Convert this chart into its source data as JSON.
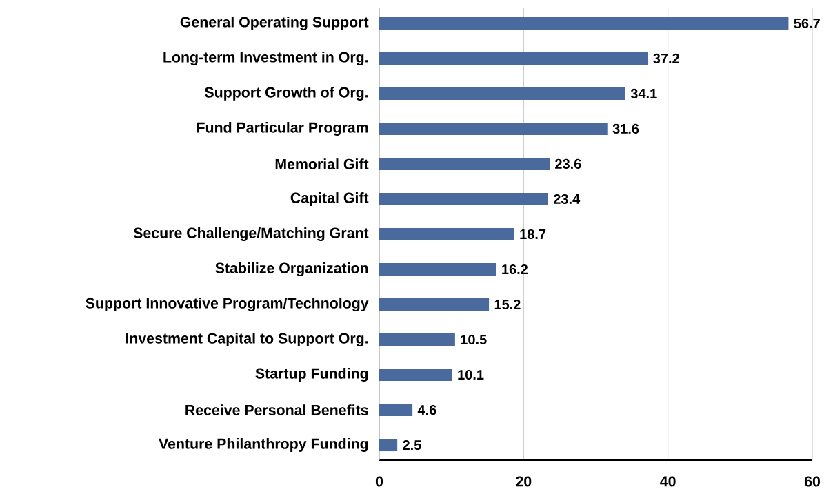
{
  "chart_data": {
    "type": "bar",
    "orientation": "horizontal",
    "categories": [
      "General Operating Support",
      "Long-term Investment in Org.",
      "Support Growth of Org.",
      "Fund Particular Program",
      "Memorial Gift",
      "Capital Gift",
      "Secure Challenge/Matching Grant",
      "Stabilize Organization",
      "Support Innovative Program/Technology",
      "Investment Capital to Support Org.",
      "Startup Funding",
      "Receive Personal Benefits",
      "Venture Philanthropy Funding"
    ],
    "values": [
      56.7,
      37.2,
      34.1,
      31.6,
      23.6,
      23.4,
      18.7,
      16.2,
      15.2,
      10.5,
      10.1,
      4.6,
      2.5
    ],
    "color": "#4a6a9e",
    "xlim": [
      0,
      60
    ],
    "xticks": [
      0,
      20,
      40,
      60
    ],
    "grid": "x",
    "data_labels": true
  }
}
